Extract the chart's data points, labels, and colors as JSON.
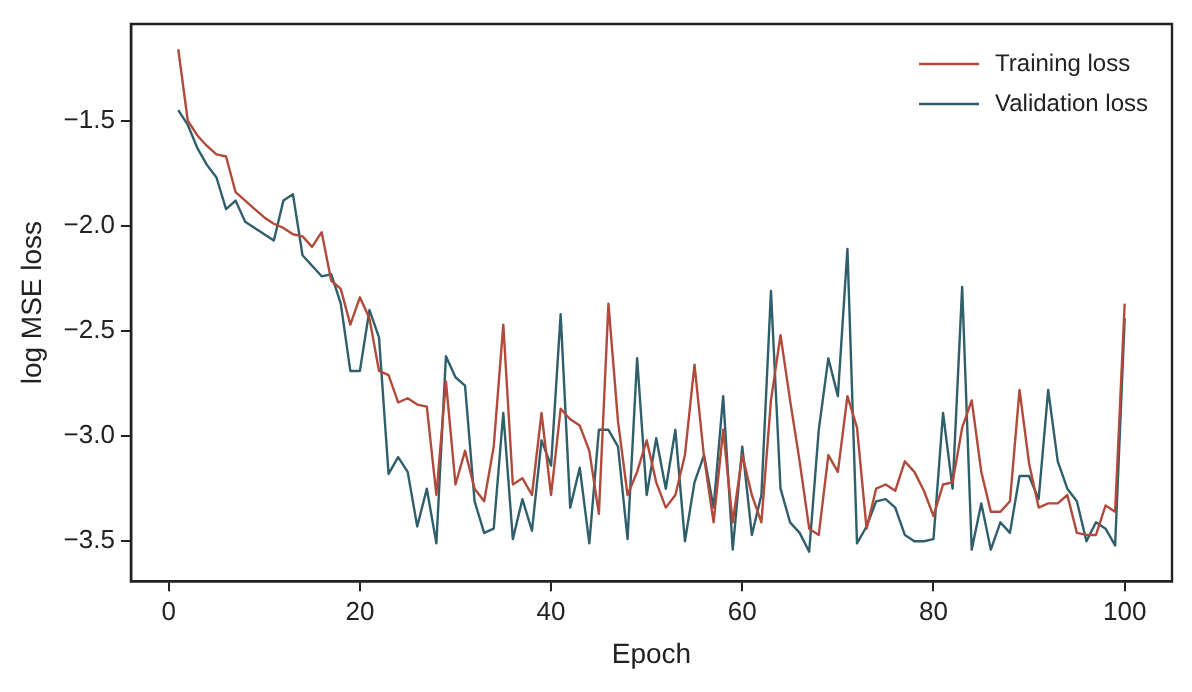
{
  "chart_data": {
    "type": "line",
    "xlabel": "Epoch",
    "ylabel": "log MSE loss",
    "x": [
      1,
      2,
      3,
      4,
      5,
      6,
      7,
      8,
      9,
      10,
      11,
      12,
      13,
      14,
      15,
      16,
      17,
      18,
      19,
      20,
      21,
      22,
      23,
      24,
      25,
      26,
      27,
      28,
      29,
      30,
      31,
      32,
      33,
      34,
      35,
      36,
      37,
      38,
      39,
      40,
      41,
      42,
      43,
      44,
      45,
      46,
      47,
      48,
      49,
      50,
      51,
      52,
      53,
      54,
      55,
      56,
      57,
      58,
      59,
      60,
      61,
      62,
      63,
      64,
      65,
      66,
      67,
      68,
      69,
      70,
      71,
      72,
      73,
      74,
      75,
      76,
      77,
      78,
      79,
      80,
      81,
      82,
      83,
      84,
      85,
      86,
      87,
      88,
      89,
      90,
      91,
      92,
      93,
      94,
      95,
      96,
      97,
      98,
      99,
      100
    ],
    "series": [
      {
        "name": "Training loss",
        "color": "#b24a3c",
        "values": [
          -1.16,
          -1.5,
          -1.57,
          -1.62,
          -1.66,
          -1.67,
          -1.84,
          -1.88,
          -1.92,
          -1.96,
          -1.99,
          -2.01,
          -2.04,
          -2.05,
          -2.1,
          -2.03,
          -2.26,
          -2.3,
          -2.47,
          -2.34,
          -2.44,
          -2.69,
          -2.71,
          -2.84,
          -2.82,
          -2.85,
          -2.86,
          -3.28,
          -2.74,
          -3.23,
          -3.07,
          -3.25,
          -3.31,
          -3.05,
          -2.47,
          -3.23,
          -3.2,
          -3.28,
          -2.89,
          -3.28,
          -2.87,
          -2.92,
          -2.95,
          -3.07,
          -3.37,
          -2.37,
          -2.93,
          -3.28,
          -3.17,
          -3.02,
          -3.22,
          -3.34,
          -3.28,
          -3.09,
          -2.66,
          -3.1,
          -3.41,
          -2.97,
          -3.41,
          -3.09,
          -3.28,
          -3.41,
          -2.83,
          -2.52,
          -2.83,
          -3.12,
          -3.44,
          -3.47,
          -3.09,
          -3.17,
          -2.81,
          -2.96,
          -3.44,
          -3.25,
          -3.23,
          -3.26,
          -3.12,
          -3.17,
          -3.26,
          -3.38,
          -3.23,
          -3.22,
          -2.96,
          -2.83,
          -3.17,
          -3.36,
          -3.36,
          -3.31,
          -2.78,
          -3.13,
          -3.34,
          -3.32,
          -3.32,
          -3.28,
          -3.46,
          -3.47,
          -3.47,
          -3.33,
          -3.36,
          -2.37
        ]
      },
      {
        "name": "Validation loss",
        "color": "#2f5f6b",
        "values": [
          -1.45,
          -1.52,
          -1.63,
          -1.71,
          -1.77,
          -1.92,
          -1.88,
          -1.98,
          -2.01,
          -2.04,
          -2.07,
          -1.88,
          -1.85,
          -2.14,
          -2.19,
          -2.24,
          -2.23,
          -2.37,
          -2.69,
          -2.69,
          -2.4,
          -2.53,
          -3.18,
          -3.1,
          -3.17,
          -3.43,
          -3.25,
          -3.51,
          -2.62,
          -2.72,
          -2.76,
          -3.31,
          -3.46,
          -3.44,
          -2.89,
          -3.49,
          -3.3,
          -3.45,
          -3.02,
          -3.14,
          -2.42,
          -3.34,
          -3.15,
          -3.51,
          -2.97,
          -2.97,
          -3.05,
          -3.49,
          -2.63,
          -3.28,
          -3.01,
          -3.25,
          -2.97,
          -3.5,
          -3.22,
          -3.09,
          -3.34,
          -2.81,
          -3.54,
          -3.05,
          -3.47,
          -3.28,
          -2.31,
          -3.25,
          -3.41,
          -3.46,
          -3.55,
          -2.97,
          -2.63,
          -2.81,
          -2.11,
          -3.51,
          -3.43,
          -3.31,
          -3.3,
          -3.34,
          -3.47,
          -3.5,
          -3.5,
          -3.49,
          -2.89,
          -3.25,
          -2.29,
          -3.54,
          -3.32,
          -3.54,
          -3.41,
          -3.46,
          -3.19,
          -3.19,
          -3.3,
          -2.78,
          -3.12,
          -3.25,
          -3.31,
          -3.5,
          -3.41,
          -3.44,
          -3.52,
          -2.44
        ]
      }
    ],
    "xlim": [
      -3.95,
      104.95
    ],
    "ylim": [
      -3.69,
      -1.04
    ],
    "xticks": [
      0,
      20,
      40,
      60,
      80,
      100
    ],
    "yticks": [
      -3.5,
      {
        "value": -3,
        "label": "−3.0"
      },
      -2.5,
      {
        "value": -2,
        "label": "−2.0"
      },
      -1.5
    ],
    "legend": "top right",
    "grid": false,
    "marker": "none",
    "line_style": "solid"
  }
}
